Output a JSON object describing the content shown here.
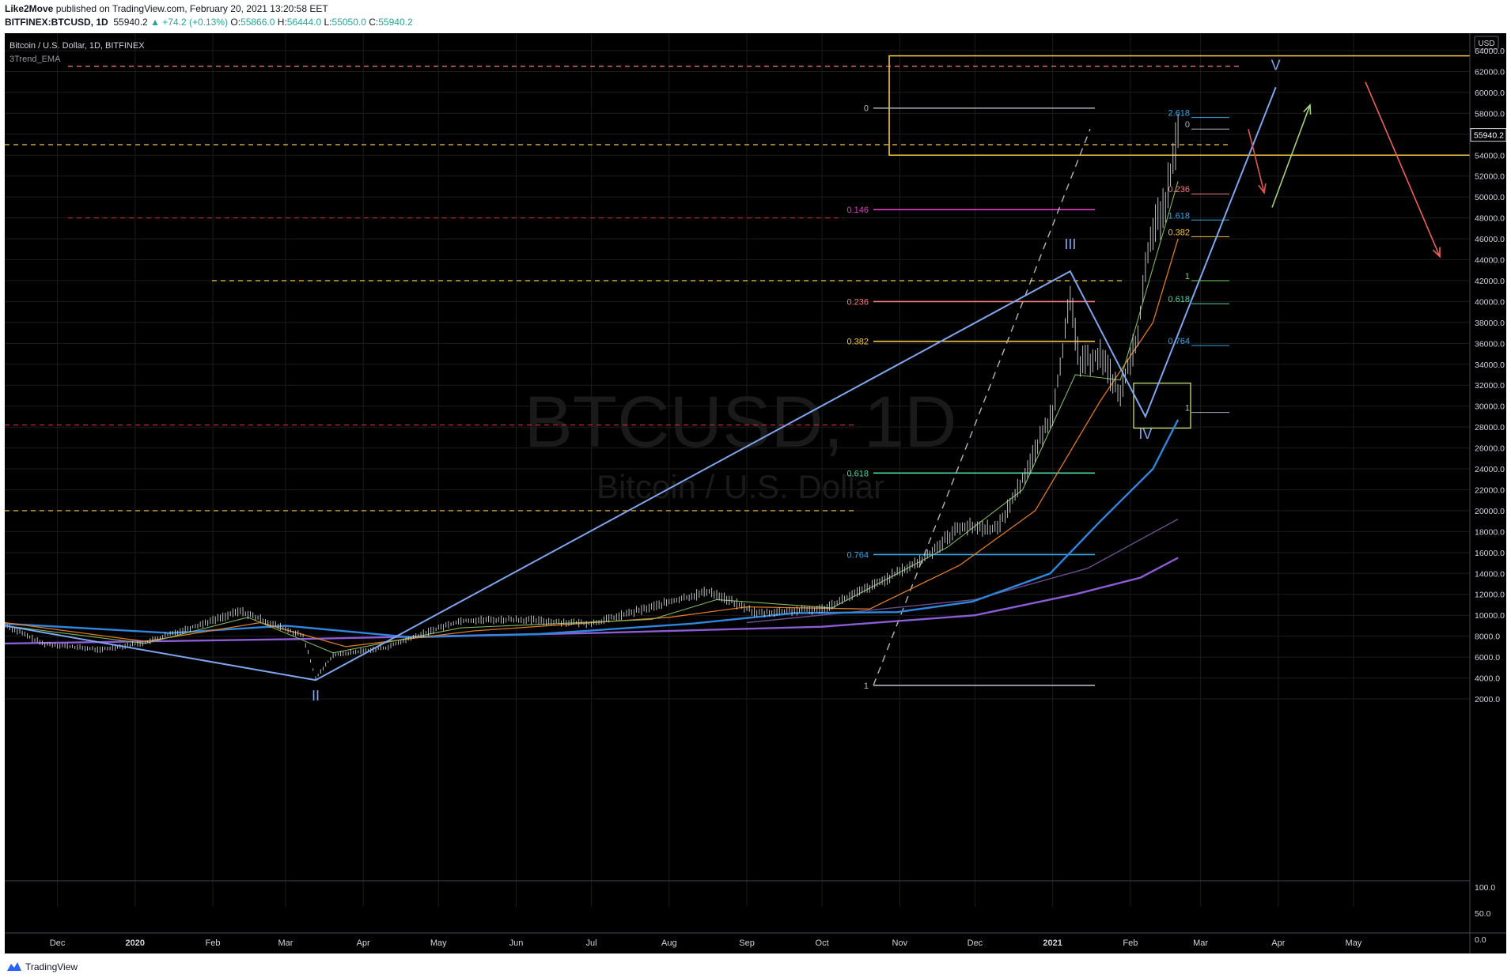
{
  "header": {
    "publisher": "Like2Move",
    "published_text": " published on TradingView.com, February 20, 2021 13:20:58 EET",
    "symbol": "BITFINEX:BTCUSD, 1D",
    "price": "55940.2",
    "change": "▲ +74.2 (+0.13%)",
    "o_label": "O:",
    "o": "55866.0",
    "h_label": "H:",
    "h": "56444.0",
    "l_label": "L:",
    "l": "55050.0",
    "c_label": "C:",
    "c": "55940.2"
  },
  "legend": {
    "title": "Bitcoin / U.S. Dollar, 1D, BITFINEX",
    "indicator": "3Trend_EMA"
  },
  "watermark": {
    "symbol": "BTCUSD, 1D",
    "name": "Bitcoin / U.S. Dollar"
  },
  "footer": {
    "brand": "TradingView"
  },
  "colors": {
    "bg": "#000000",
    "grid": "#1c1c1c",
    "wave": "#7ea6ef",
    "box": "#f5c742",
    "fib_white": "#b2b5be",
    "fib_magenta": "#e040c8",
    "fib_salmon": "#f77c80",
    "fib_yellow": "#f5c742",
    "fib_green": "#4fd6a1",
    "fib_blue": "#33a7e8",
    "ema_blue": "#2e86de",
    "ema_purple": "#8c5bd6"
  },
  "chart_data": {
    "type": "candlestick",
    "title": "Bitcoin / U.S. Dollar, 1D, BITFINEX",
    "currency": "USD",
    "last_price": "55940.2",
    "ylim": [
      0,
      65000
    ],
    "y_ticks": [
      "64000.0",
      "62000.0",
      "60000.0",
      "58000.0",
      "56000.0",
      "54000.0",
      "52000.0",
      "50000.0",
      "48000.0",
      "46000.0",
      "44000.0",
      "42000.0",
      "40000.0",
      "38000.0",
      "36000.0",
      "34000.0",
      "32000.0",
      "30000.0",
      "28000.0",
      "26000.0",
      "24000.0",
      "22000.0",
      "20000.0",
      "18000.0",
      "16000.0",
      "14000.0",
      "12000.0",
      "10000.0",
      "8000.0",
      "6000.0",
      "4000.0",
      "2000.0"
    ],
    "x_ticks": [
      "Dec",
      "2020",
      "Feb",
      "Mar",
      "Apr",
      "May",
      "Jun",
      "Jul",
      "Aug",
      "Sep",
      "Oct",
      "Nov",
      "Dec",
      "2021",
      "Feb",
      "Mar",
      "Apr",
      "May"
    ],
    "x_tick_dates": [
      "2019-12-01",
      "2020-01-01",
      "2020-02-01",
      "2020-03-01",
      "2020-04-01",
      "2020-05-01",
      "2020-06-01",
      "2020-07-01",
      "2020-08-01",
      "2020-09-01",
      "2020-10-01",
      "2020-11-01",
      "2020-12-01",
      "2021-01-01",
      "2021-02-01",
      "2021-03-01",
      "2021-04-01",
      "2021-05-01"
    ],
    "price_path": [
      [
        "2019-11-10",
        9100
      ],
      [
        "2019-11-25",
        7300
      ],
      [
        "2019-12-18",
        6700
      ],
      [
        "2020-01-05",
        7400
      ],
      [
        "2020-02-12",
        10400
      ],
      [
        "2020-03-08",
        8000
      ],
      [
        "2020-03-13",
        4000
      ],
      [
        "2020-03-20",
        6200
      ],
      [
        "2020-04-10",
        6900
      ],
      [
        "2020-04-30",
        8700
      ],
      [
        "2020-05-10",
        9500
      ],
      [
        "2020-06-01",
        9600
      ],
      [
        "2020-07-01",
        9200
      ],
      [
        "2020-07-28",
        11000
      ],
      [
        "2020-08-17",
        12300
      ],
      [
        "2020-09-05",
        10200
      ],
      [
        "2020-10-01",
        10600
      ],
      [
        "2020-10-22",
        12900
      ],
      [
        "2020-11-10",
        15300
      ],
      [
        "2020-11-25",
        18500
      ],
      [
        "2020-12-10",
        18300
      ],
      [
        "2020-12-20",
        23000
      ],
      [
        "2021-01-01",
        29500
      ],
      [
        "2021-01-08",
        40000
      ],
      [
        "2021-01-12",
        34000
      ],
      [
        "2021-01-20",
        35000
      ],
      [
        "2021-01-28",
        31000
      ],
      [
        "2021-02-04",
        37000
      ],
      [
        "2021-02-09",
        46500
      ],
      [
        "2021-02-14",
        48500
      ],
      [
        "2021-02-20",
        55940
      ]
    ],
    "ema_fast": [
      [
        "2019-11-10",
        9000
      ],
      [
        "2020-01-05",
        7300
      ],
      [
        "2020-02-15",
        9800
      ],
      [
        "2020-03-20",
        6400
      ],
      [
        "2020-05-10",
        8800
      ],
      [
        "2020-07-25",
        9600
      ],
      [
        "2020-08-20",
        11500
      ],
      [
        "2020-10-05",
        10700
      ],
      [
        "2020-11-20",
        16500
      ],
      [
        "2020-12-20",
        22000
      ],
      [
        "2021-01-10",
        33000
      ],
      [
        "2021-01-28",
        32500
      ],
      [
        "2021-02-20",
        51500
      ]
    ],
    "ema_mid": [
      [
        "2019-11-10",
        9300
      ],
      [
        "2020-01-05",
        7500
      ],
      [
        "2020-02-20",
        9300
      ],
      [
        "2020-03-25",
        7000
      ],
      [
        "2020-05-15",
        8500
      ],
      [
        "2020-08-01",
        9800
      ],
      [
        "2020-09-01",
        10800
      ],
      [
        "2020-10-20",
        10600
      ],
      [
        "2020-11-25",
        14800
      ],
      [
        "2020-12-25",
        20000
      ],
      [
        "2021-01-20",
        30500
      ],
      [
        "2021-02-10",
        38000
      ],
      [
        "2021-02-20",
        46000
      ]
    ],
    "ema_slow_blue": [
      [
        "2019-11-10",
        9200
      ],
      [
        "2020-01-15",
        8300
      ],
      [
        "2020-03-01",
        9000
      ],
      [
        "2020-04-20",
        7900
      ],
      [
        "2020-06-10",
        8200
      ],
      [
        "2020-08-10",
        9200
      ],
      [
        "2020-09-20",
        10200
      ],
      [
        "2020-10-31",
        10300
      ],
      [
        "2020-11-30",
        11300
      ],
      [
        "2020-12-31",
        14000
      ],
      [
        "2021-01-20",
        19000
      ],
      [
        "2021-02-10",
        24000
      ],
      [
        "2021-02-20",
        28700
      ]
    ],
    "ema_purple": [
      [
        "2019-11-10",
        7300
      ],
      [
        "2020-03-01",
        7700
      ],
      [
        "2020-07-01",
        8300
      ],
      [
        "2020-10-01",
        8900
      ],
      [
        "2020-12-01",
        10000
      ],
      [
        "2021-01-10",
        12000
      ],
      [
        "2021-02-05",
        13600
      ],
      [
        "2021-02-20",
        15500
      ]
    ],
    "ema_violet": [
      [
        "2020-09-01",
        9300
      ],
      [
        "2020-12-01",
        11500
      ],
      [
        "2021-01-15",
        14500
      ],
      [
        "2021-02-20",
        19200
      ]
    ],
    "wave_labels": [
      {
        "label": "II",
        "date": "2020-03-13",
        "value": 3800
      },
      {
        "label": "III",
        "date": "2021-01-08",
        "value": 42900
      },
      {
        "label": "IV",
        "date": "2021-02-07",
        "value": 29000
      },
      {
        "label": "V",
        "date": "2021-03-31",
        "value": 60500
      }
    ],
    "fib_levels": [
      {
        "label": "0",
        "value": 58500
      },
      {
        "label": "0.146",
        "value": 48800
      },
      {
        "label": "0.236",
        "value": 40000
      },
      {
        "label": "0.382",
        "value": 36200
      },
      {
        "label": "0.618",
        "value": 23600
      },
      {
        "label": "0.764",
        "value": 15800
      },
      {
        "label": "1",
        "value": 3300
      }
    ],
    "fib_extension_levels": [
      {
        "label": "2.618",
        "value": 57600
      },
      {
        "label": "0",
        "value": 56500
      },
      {
        "label": "0.236",
        "value": 50300
      },
      {
        "label": "1.618",
        "value": 47800
      },
      {
        "label": "0.382",
        "value": 46200
      },
      {
        "label": "1",
        "value": 42000
      },
      {
        "label": "0.618",
        "value": 39800
      },
      {
        "label": "0.764",
        "value": 35800
      },
      {
        "label": "1",
        "value": 29400
      }
    ],
    "horizontal_levels": [
      62500,
      55000,
      48000,
      42000,
      28200,
      20000
    ],
    "target_zone": [
      54000,
      63500
    ],
    "volume_ticks": [
      "100.0",
      "50.0",
      "0.0"
    ],
    "grid": true
  }
}
